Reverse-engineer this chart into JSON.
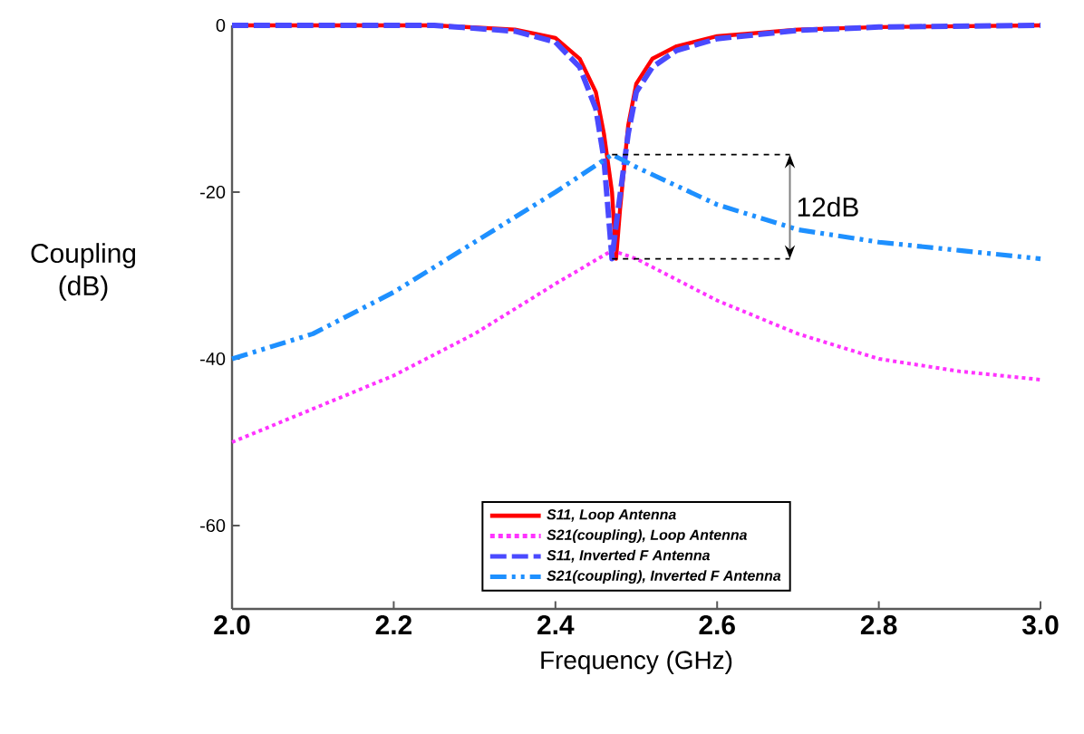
{
  "chart_data": {
    "type": "line",
    "xlabel": "Frequency (GHz)",
    "ylabel": "Coupling (dB)",
    "xlim": [
      2.0,
      3.0
    ],
    "xticks": [
      {
        "value": 2.0,
        "label": "2.0"
      },
      {
        "value": 2.2,
        "label": "2.2"
      },
      {
        "value": 2.4,
        "label": "2.4"
      },
      {
        "value": 2.6,
        "label": "2.6"
      },
      {
        "value": 2.8,
        "label": "2.8"
      },
      {
        "value": 3.0,
        "label": "3.0"
      }
    ],
    "ylim": [
      -70,
      0
    ],
    "yticks": [
      -60,
      -40,
      -20,
      0
    ],
    "grid": false,
    "legend": "bottom",
    "marker": "none",
    "annotations": [
      "12dB"
    ],
    "series": [
      {
        "name": "*S11, Loop Antenna*",
        "color": "#ff0000",
        "line_style": "solid",
        "x": [
          2.0,
          2.25,
          2.35,
          2.4,
          2.43,
          2.45,
          2.46,
          2.47,
          2.475,
          2.48,
          2.49,
          2.5,
          2.52,
          2.55,
          2.6,
          2.7,
          2.8,
          3.0
        ],
        "values": [
          0,
          0,
          -0.5,
          -1.5,
          -4,
          -8,
          -13,
          -20,
          -28,
          -22,
          -12,
          -7,
          -4,
          -2.5,
          -1.3,
          -0.5,
          -0.2,
          0
        ]
      },
      {
        "name": "*S21(coupling), Loop Antenna*",
        "color": "#ff33ff",
        "line_style": "dotted",
        "x": [
          2.0,
          2.1,
          2.2,
          2.3,
          2.4,
          2.47,
          2.5,
          2.6,
          2.7,
          2.8,
          2.9,
          3.0
        ],
        "values": [
          -50,
          -46,
          -42,
          -37,
          -31,
          -27,
          -28,
          -33,
          -37,
          -40,
          -41.5,
          -42.5
        ]
      },
      {
        "name": "*S11, Inverted F Antenna*",
        "color": "#4a4aff",
        "line_style": "dashed",
        "x": [
          2.0,
          2.25,
          2.35,
          2.4,
          2.43,
          2.45,
          2.46,
          2.465,
          2.47,
          2.475,
          2.49,
          2.5,
          2.52,
          2.55,
          2.6,
          2.7,
          2.8,
          3.0
        ],
        "values": [
          0,
          0,
          -0.7,
          -2,
          -5,
          -10,
          -16,
          -22,
          -28,
          -24,
          -13,
          -8,
          -5,
          -3,
          -1.6,
          -0.6,
          -0.2,
          0
        ]
      },
      {
        "name": "*S21(coupling), Inverted F Antenna*",
        "color": "#1e90ff",
        "line_style": "dashdotdot",
        "x": [
          2.0,
          2.1,
          2.2,
          2.3,
          2.4,
          2.47,
          2.5,
          2.6,
          2.7,
          2.8,
          2.9,
          3.0
        ],
        "values": [
          -40,
          -37,
          -32,
          -26,
          -20,
          -15.5,
          -17,
          -21.5,
          -24.5,
          -26,
          -27,
          -28
        ]
      }
    ]
  }
}
